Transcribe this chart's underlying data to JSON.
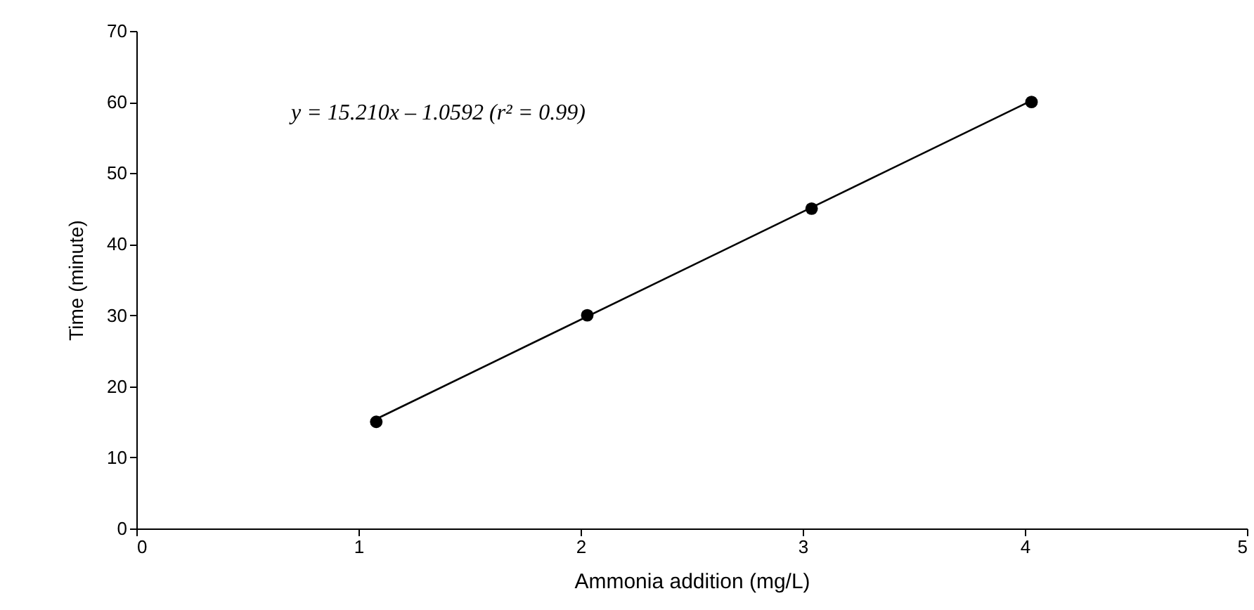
{
  "chart_data": {
    "type": "scatter",
    "xlabel": "Ammonia addition (mg/L)",
    "ylabel": "Time (minute)",
    "xlim": [
      0,
      5
    ],
    "xticks": [
      0,
      1,
      2,
      3,
      4,
      5
    ],
    "ylim": [
      0,
      70
    ],
    "yticks": [
      0,
      10,
      20,
      30,
      40,
      50,
      60,
      70
    ],
    "grid": false,
    "annotations": [
      "y = 15.210x – 1.0592 (r² = 0.99)"
    ],
    "series": [
      {
        "marker": "circle",
        "color": "#000000",
        "x": [
          1.08,
          2.03,
          3.04,
          4.03
        ],
        "values": [
          15,
          30,
          45,
          60
        ]
      },
      {
        "type": "line",
        "color": "#000000",
        "line_style": "solid",
        "marker": "none",
        "x": [
          1.08,
          4.03
        ],
        "values": [
          15.4,
          60.2
        ]
      }
    ]
  }
}
